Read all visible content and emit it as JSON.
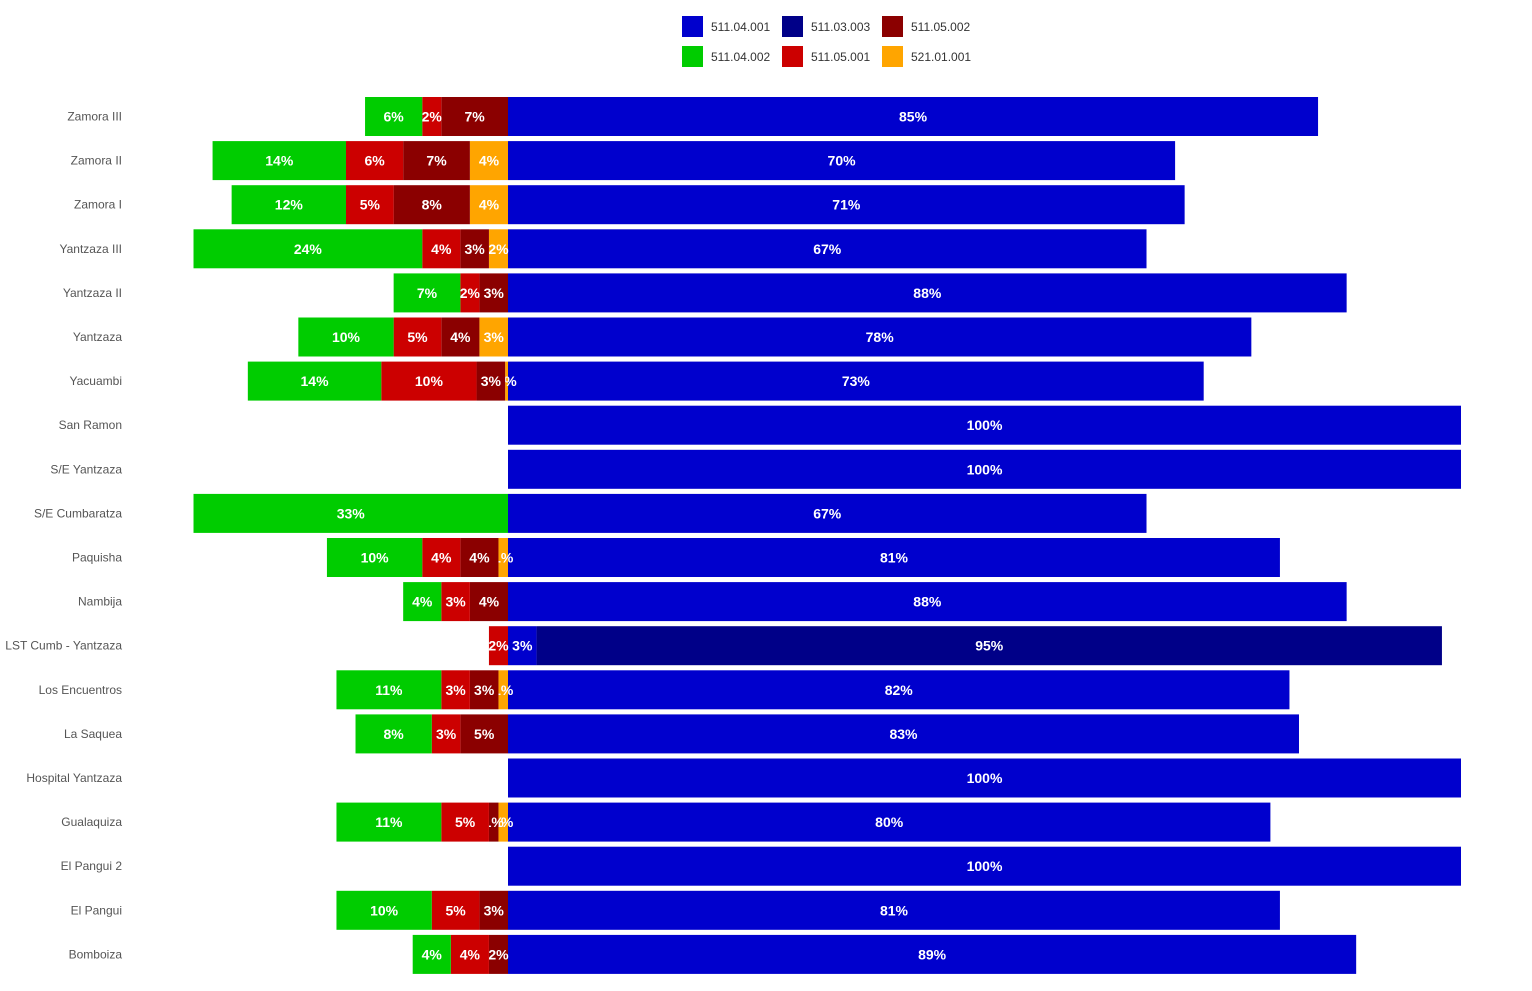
{
  "chart_data": {
    "type": "bar",
    "orientation": "horizontal",
    "stacked": true,
    "diverging": true,
    "grid": false,
    "legend_position": "top-center",
    "xlim": [
      -35,
      100
    ],
    "categories": [
      "Zamora III",
      "Zamora II",
      "Zamora I",
      "Yantzaza III",
      "Yantzaza II",
      "Yantzaza",
      "Yacuambi",
      "San Ramon",
      "S/E Yantzaza",
      "S/E Cumbaratza",
      "Paquisha",
      "Nambija",
      "LST Cumb - Yantzaza",
      "Los Encuentros",
      "La Saquea",
      "Hospital Yantzaza",
      "Gualaquiza",
      "El Pangui 2",
      "El Pangui",
      "Bomboiza"
    ],
    "series": [
      {
        "name": "511.04.001",
        "color": "#0000CD",
        "side": "right",
        "values": [
          85,
          70,
          71,
          67,
          88,
          78,
          73,
          100,
          100,
          67,
          81,
          88,
          3,
          82,
          83,
          100,
          80,
          100,
          81,
          89
        ],
        "labels": [
          "85%",
          "70%",
          "71%",
          "67%",
          "88%",
          "78%",
          "73%",
          "100%",
          "100%",
          "67%",
          "81%",
          "88%",
          "3%",
          "82%",
          "83%",
          "100%",
          "80%",
          "100%",
          "81%",
          "89%"
        ]
      },
      {
        "name": "511.03.003",
        "color": "#000088",
        "side": "right",
        "values": [
          0,
          0,
          0,
          0,
          0,
          0,
          0,
          0,
          0,
          0,
          0,
          0,
          95,
          0,
          0,
          0,
          0,
          0,
          0,
          0
        ],
        "labels": [
          "",
          "",
          "",
          "",
          "",
          "",
          "",
          "",
          "",
          "",
          "",
          "",
          "95%",
          "",
          "",
          "",
          "",
          "",
          "",
          ""
        ]
      },
      {
        "name": "511.05.002",
        "color": "#8B0000",
        "side": "left",
        "values": [
          7,
          7,
          8,
          3,
          3,
          4,
          3,
          0,
          0,
          0,
          4,
          4,
          0,
          3,
          5,
          0,
          1,
          0,
          3,
          2
        ],
        "labels": [
          "7%",
          "7%",
          "8%",
          "3%",
          "3%",
          "4%",
          "3%",
          "",
          "",
          "",
          "4%",
          "4%",
          "",
          "3%",
          "5%",
          "",
          "1%",
          "",
          "3%",
          "2%"
        ]
      },
      {
        "name": "511.04.002",
        "color": "#00CC00",
        "side": "left",
        "values": [
          6,
          14,
          12,
          24,
          7,
          10,
          14,
          0,
          0,
          33,
          10,
          4,
          0,
          11,
          8,
          0,
          11,
          0,
          10,
          4
        ],
        "labels": [
          "6%",
          "14%",
          "12%",
          "24%",
          "7%",
          "10%",
          "14%",
          "",
          "",
          "33%",
          "10%",
          "4%",
          "",
          "11%",
          "8%",
          "",
          "11%",
          "",
          "10%",
          "4%"
        ]
      },
      {
        "name": "511.05.001",
        "color": "#CC0000",
        "side": "left",
        "values": [
          2,
          6,
          5,
          4,
          2,
          5,
          10,
          0,
          0,
          0,
          4,
          3,
          2,
          3,
          3,
          0,
          5,
          0,
          5,
          4
        ],
        "labels": [
          "2%",
          "6%",
          "5%",
          "4%",
          "2%",
          "5%",
          "10%",
          "",
          "",
          "",
          "4%",
          "3%",
          "2%",
          "3%",
          "3%",
          "",
          "5%",
          "",
          "5%",
          "4%"
        ]
      },
      {
        "name": "521.01.001",
        "color": "#FFA500",
        "side": "left",
        "values": [
          0,
          4,
          4,
          2,
          0,
          3,
          0.3,
          0,
          0,
          0,
          1,
          0,
          0,
          1,
          0,
          0,
          1,
          0,
          0,
          0
        ],
        "labels": [
          "",
          "4%",
          "4%",
          "2%",
          "",
          "3%",
          "0%",
          "",
          "",
          "",
          "1%",
          "",
          "",
          "1%",
          "",
          "",
          "1%",
          "",
          "",
          ""
        ]
      }
    ],
    "left_stack_order_from_center": [
      "521.01.001",
      "511.05.002",
      "511.05.001",
      "511.04.002"
    ],
    "right_stack_order_from_center": [
      "511.04.001",
      "511.03.003"
    ]
  }
}
